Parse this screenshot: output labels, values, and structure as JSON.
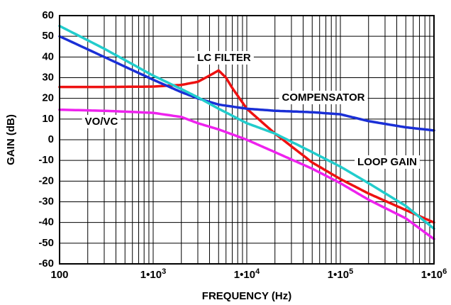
{
  "chart_data": {
    "type": "line",
    "xlabel": "FREQUENCY (Hz)",
    "ylabel": "GAIN (dB)",
    "x_scale": "log",
    "xlim": [
      100,
      1000000
    ],
    "ylim": [
      -60,
      60
    ],
    "grid": true,
    "y_ticks": [
      60,
      50,
      40,
      30,
      20,
      10,
      0,
      -10,
      -20,
      -30,
      -40,
      -50,
      -60
    ],
    "x_ticks": [
      {
        "value": 100,
        "base": "100",
        "exp": ""
      },
      {
        "value": 1000,
        "base": "1•10",
        "exp": "3"
      },
      {
        "value": 10000,
        "base": "1•10",
        "exp": "4"
      },
      {
        "value": 100000,
        "base": "1•10",
        "exp": "5"
      },
      {
        "value": 1000000,
        "base": "1•10",
        "exp": "6"
      }
    ],
    "series": [
      {
        "name": "LC FILTER",
        "color": "#ee1111",
        "x": [
          100,
          300,
          1000,
          2000,
          3000,
          4000,
          5000,
          6000,
          7000,
          10000,
          20000,
          50000,
          100000,
          200000,
          500000,
          1000000
        ],
        "y": [
          25.5,
          25.5,
          25.7,
          26.5,
          28,
          31,
          33.5,
          30,
          25,
          15,
          3,
          -11,
          -19,
          -26,
          -34,
          -40
        ]
      },
      {
        "name": "COMPENSATOR",
        "color": "#1a2fd6",
        "x": [
          100,
          300,
          1000,
          2000,
          3000,
          5000,
          10000,
          20000,
          50000,
          100000,
          200000,
          500000,
          1000000
        ],
        "y": [
          50,
          40,
          29,
          23,
          20,
          17,
          15,
          14,
          13.3,
          12.3,
          9,
          6,
          4.5
        ]
      },
      {
        "name": "LOOP GAIN",
        "color": "#22cccc",
        "x": [
          100,
          300,
          1000,
          2000,
          3000,
          5000,
          10000,
          20000,
          50000,
          100000,
          200000,
          500000,
          1000000
        ],
        "y": [
          55,
          44,
          31,
          24.5,
          20.5,
          15,
          8,
          3,
          -6,
          -13,
          -21,
          -32,
          -43
        ]
      },
      {
        "name": "VO/VC",
        "color": "#ee22ee",
        "x": [
          100,
          300,
          1000,
          2000,
          3000,
          5000,
          10000,
          20000,
          50000,
          100000,
          200000,
          500000,
          1000000
        ],
        "y": [
          14.5,
          14,
          13,
          11,
          8,
          5,
          0,
          -6,
          -14,
          -21,
          -29,
          -38,
          -48
        ]
      }
    ],
    "annotations": [
      "LC FILTER",
      "COMPENSATOR",
      "LOOP GAIN",
      "VO/VC"
    ]
  }
}
